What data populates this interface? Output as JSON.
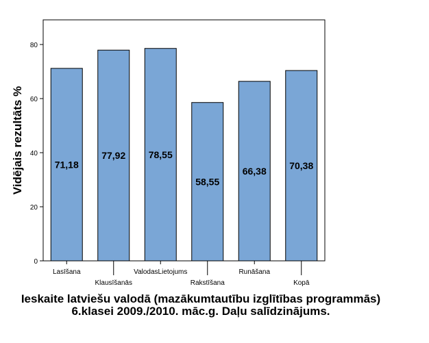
{
  "chart_data": {
    "type": "bar",
    "categories": [
      "Lasīšana",
      "Klausīšanās",
      "ValodasLietojums",
      "Rakstīšana",
      "Runāšana",
      "Kopā"
    ],
    "values": [
      71.18,
      77.92,
      78.55,
      58.55,
      66.38,
      70.38
    ],
    "data_labels": [
      "71,18",
      "77,92",
      "78,55",
      "58,55",
      "66,38",
      "70,38"
    ],
    "ylabel": "Vidējais rezultāts %",
    "xlabel": "Ieskaite latviešu valodā (mazākumtautību izglītības programmās) 6.klasei 2009./2010. māc.g. Daļu salīdzinājums.",
    "ylim": [
      0,
      90
    ],
    "yticks": [
      0,
      20,
      40,
      60,
      80
    ],
    "grid": false,
    "bar_color": "#7aa6d6",
    "bar_edge_color": "#000000"
  }
}
